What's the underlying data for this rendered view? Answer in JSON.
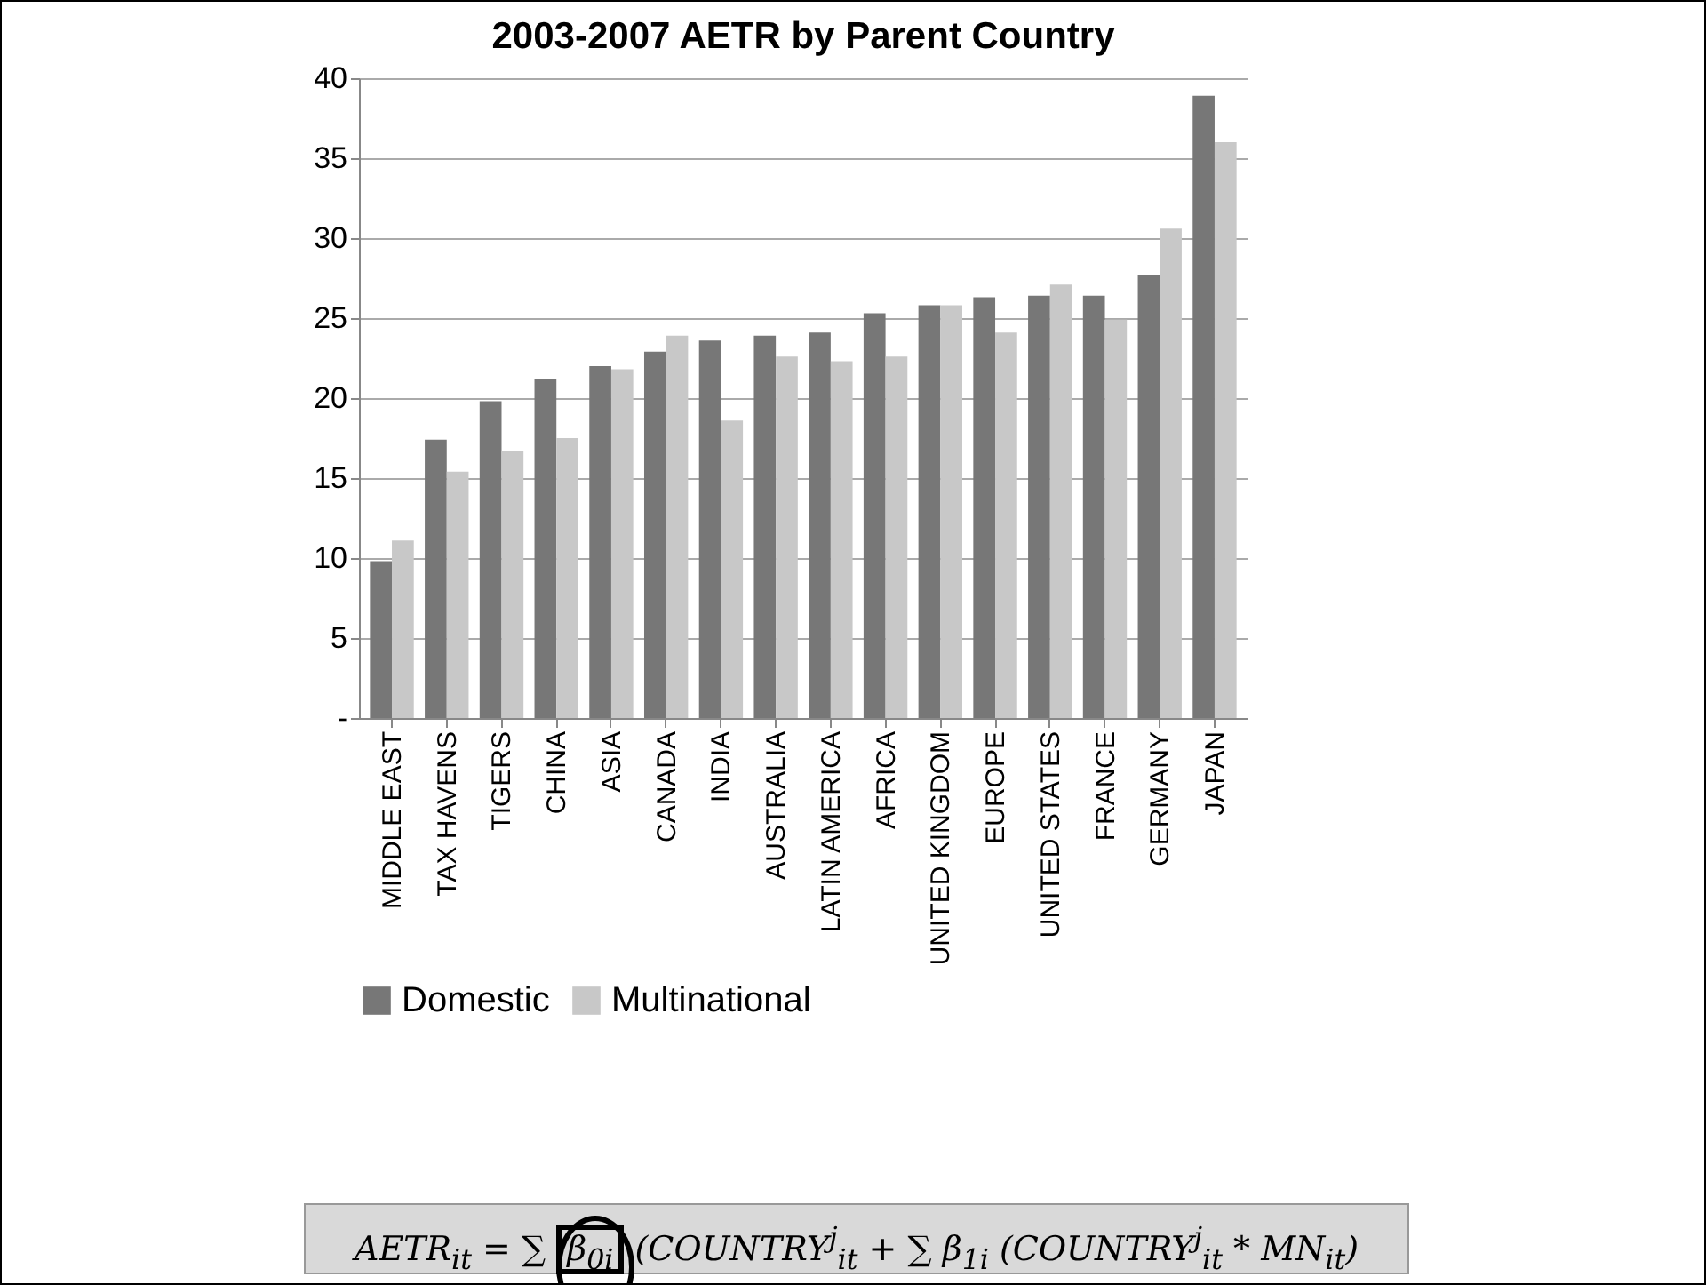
{
  "chart_data": {
    "type": "bar",
    "title": "2003-2007 AETR by Parent Country",
    "categories": [
      "MIDDLE EAST",
      "TAX HAVENS",
      "TIGERS",
      "CHINA",
      "ASIA",
      "CANADA",
      "INDIA",
      "AUSTRALIA",
      "LATIN AMERICA",
      "AFRICA",
      "UNITED KINGDOM",
      "EUROPE",
      "UNITED STATES",
      "FRANCE",
      "GERMANY",
      "JAPAN"
    ],
    "series": [
      {
        "name": "Domestic",
        "color": "#777777",
        "values": [
          9.8,
          17.4,
          19.8,
          21.2,
          22.0,
          22.9,
          23.6,
          23.9,
          24.1,
          25.3,
          25.8,
          26.3,
          26.4,
          26.4,
          27.7,
          38.9
        ]
      },
      {
        "name": "Multinational",
        "color": "#c8c8c8",
        "values": [
          11.1,
          15.4,
          16.7,
          17.5,
          21.8,
          23.9,
          18.6,
          22.6,
          22.3,
          22.6,
          25.8,
          24.1,
          27.1,
          24.9,
          30.6,
          36.0
        ]
      }
    ],
    "ylim": [
      0,
      40
    ],
    "yticks": [
      {
        "value": 0,
        "label": "-"
      },
      5,
      10,
      15,
      20,
      25,
      30,
      35,
      40
    ],
    "grid": "y",
    "legend": "bottom",
    "annotations": [
      "AETR$_{it}$ = ∑ β$_{0i}$ (COUNTRY$^{j}$$_{it}$ + ∑ β$_{1i}$ (COUNTRY$^{j}$$_{it}$ * MN$_{it}$)"
    ]
  }
}
